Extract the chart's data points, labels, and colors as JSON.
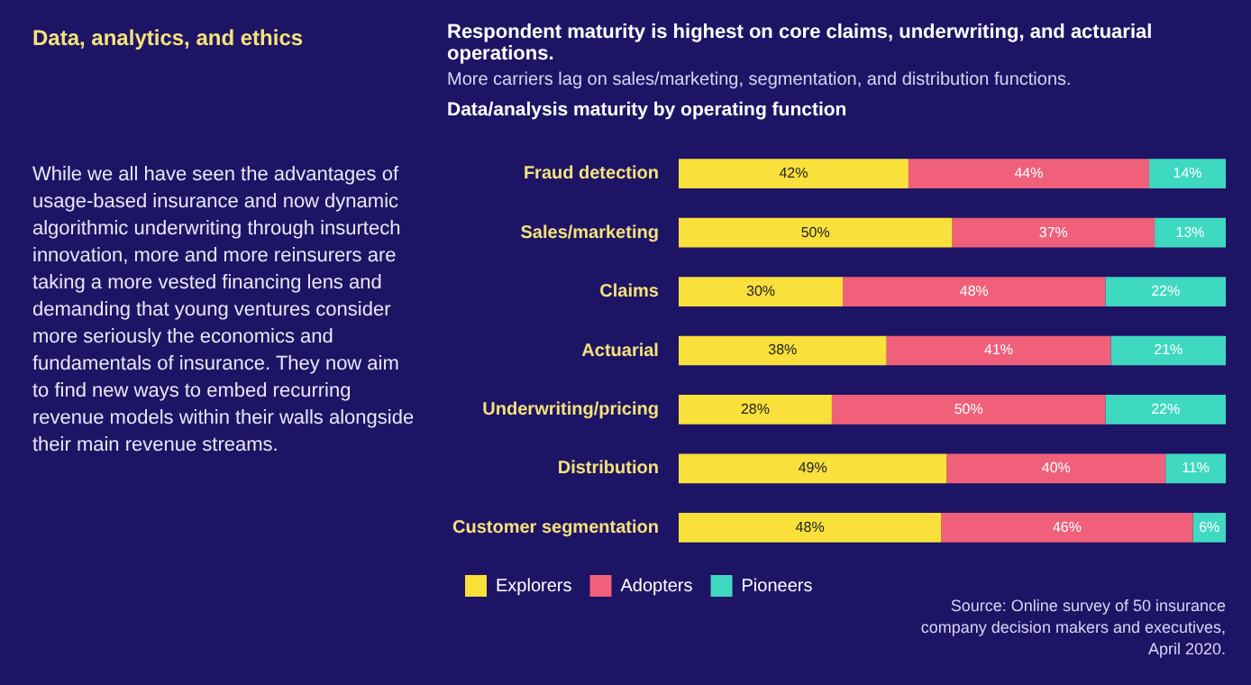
{
  "chart_data": {
    "type": "bar",
    "orientation": "horizontal",
    "stacked": true,
    "title": "Respondent maturity is highest on core claims, underwriting, and actuarial operations.",
    "subtitle": "More carriers lag on sales/marketing, segmentation, and distribution functions.",
    "annotations": [
      "Data, analytics, and ethics",
      "While we all have seen the advantages of usage-based insurance and now dynamic algorithmic underwriting through insurtech innovation, more and more reinsurers are taking a more vested financing lens and demanding that young ventures consider more seriously the economics and fundamentals of insurance. They now aim to find new ways to embed recurring revenue models within their walls alongside their main revenue streams.",
      "Data/analysis maturity by operating function",
      "Source: Online survey of 50 insurance company decision makers and executives, April 2020."
    ],
    "categories": [
      "Fraud detection",
      "Sales/marketing",
      "Claims",
      "Actuarial",
      "Underwriting/pricing",
      "Distribution",
      "Customer segmentation"
    ],
    "series": [
      {
        "name": "Explorers",
        "color": "#f9e03a",
        "values": [
          42,
          50,
          30,
          38,
          28,
          49,
          48
        ],
        "value_labels": [
          "42%",
          "50%",
          "30%",
          "38%",
          "28%",
          "49%",
          "48%"
        ]
      },
      {
        "name": "Adopters",
        "color": "#f0607a",
        "values": [
          44,
          37,
          48,
          41,
          50,
          40,
          46
        ],
        "value_labels": [
          "44%",
          "37%",
          "48%",
          "41%",
          "50%",
          "40%",
          "46%"
        ]
      },
      {
        "name": "Pioneers",
        "color": "#3fd9c1",
        "values": [
          14,
          13,
          22,
          21,
          22,
          11,
          6
        ],
        "value_labels": [
          "14%",
          "13%",
          "22%",
          "21%",
          "22%",
          "11%",
          "6%"
        ]
      }
    ],
    "legend": "bottom"
  }
}
